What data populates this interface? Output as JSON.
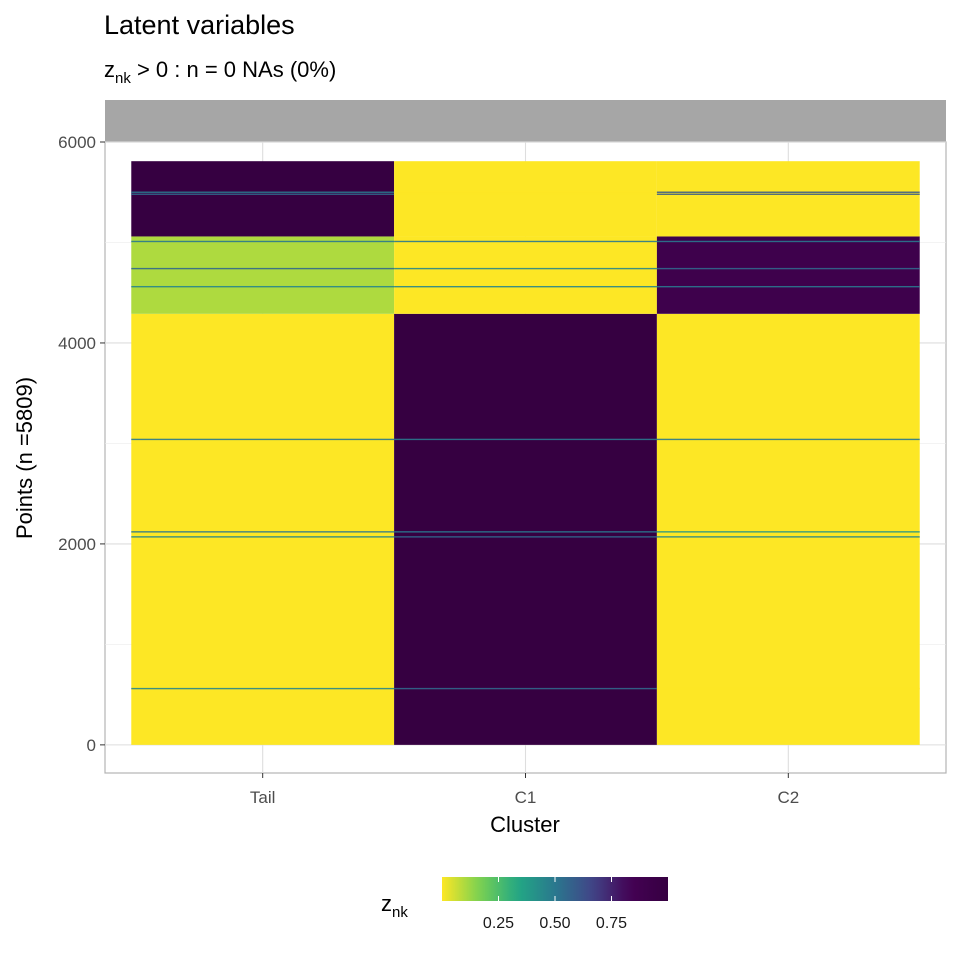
{
  "chart_data": {
    "type": "heatmap",
    "title": "Latent variables",
    "subtitle": {
      "var": "z",
      "var_sub": "nk",
      "text": " > 0 : n = 0  NAs (0%)"
    },
    "xlabel": "Cluster",
    "ylabel": "Points (n =5809)",
    "categories": [
      "Tail",
      "C1",
      "C2"
    ],
    "ylim": [
      -280,
      6000
    ],
    "y_ticks": [
      0,
      2000,
      4000,
      6000
    ],
    "n_points": 5809,
    "segments": [
      {
        "from": 0,
        "to": 4290,
        "values": [
          0.0,
          1.0,
          0.0
        ]
      },
      {
        "from": 4290,
        "to": 5060,
        "values": [
          0.1,
          0.0,
          0.9
        ]
      },
      {
        "from": 5060,
        "to": 5809,
        "values": [
          1.0,
          0.0,
          0.0
        ]
      }
    ],
    "stripes": [
      {
        "y": 560,
        "values": [
          0.45,
          0.55,
          0.0
        ]
      },
      {
        "y": 2070,
        "values": [
          0.45,
          0.55,
          0.45
        ]
      },
      {
        "y": 2120,
        "values": [
          0.5,
          0.5,
          0.4
        ]
      },
      {
        "y": 3040,
        "values": [
          0.5,
          0.5,
          0.5
        ]
      },
      {
        "y": 4560,
        "values": [
          0.45,
          0.45,
          0.5
        ]
      },
      {
        "y": 4740,
        "values": [
          0.55,
          0.45,
          0.55
        ]
      },
      {
        "y": 5010,
        "values": [
          0.5,
          0.5,
          0.5
        ]
      },
      {
        "y": 5480,
        "values": [
          0.55,
          0.0,
          0.6
        ]
      },
      {
        "y": 5500,
        "values": [
          0.5,
          0.0,
          0.6
        ]
      }
    ],
    "legend": {
      "title_var": "z",
      "title_sub": "nk",
      "ticks": [
        "0.25",
        "0.50",
        "0.75"
      ],
      "tick_values": [
        0.25,
        0.5,
        0.75
      ],
      "range": [
        0.0,
        1.0
      ],
      "position": "bottom"
    },
    "colormap": [
      "#fde725",
      "#7ad151",
      "#22a884",
      "#2a788e",
      "#414487",
      "#440154",
      "#360041"
    ],
    "strip_color": "#a6a6a6",
    "grid": true
  }
}
